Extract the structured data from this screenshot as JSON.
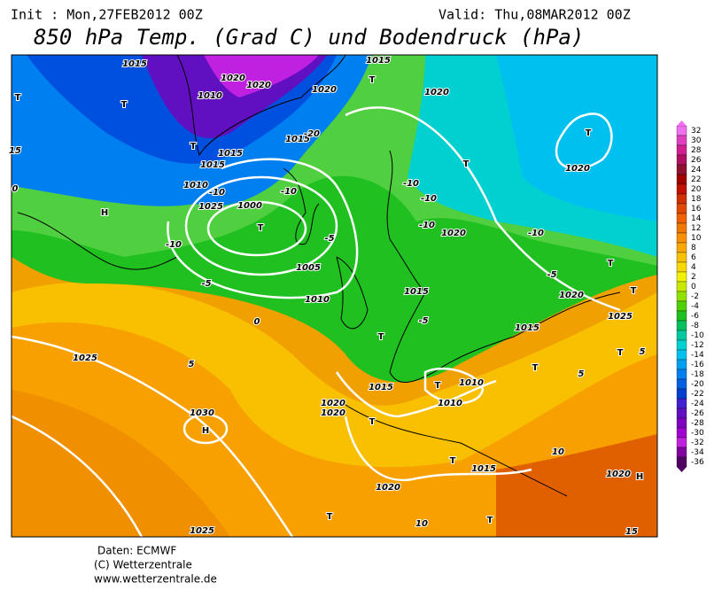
{
  "header": {
    "init": "Init : Mon,27FEB2012 00Z",
    "valid": "Valid: Thu,08MAR2012 00Z",
    "title": "850 hPa Temp. (Grad C) und Bodendruck (hPa)"
  },
  "footer": [
    "Daten: ECMWF",
    "(C) Wetterzentrale",
    "www.wetterzentrale.de"
  ],
  "colorbar": {
    "values": [
      32,
      30,
      28,
      26,
      24,
      22,
      20,
      18,
      16,
      14,
      12,
      10,
      8,
      6,
      4,
      2,
      0,
      -2,
      -4,
      -6,
      -8,
      -10,
      -12,
      -14,
      -16,
      -18,
      -20,
      -22,
      -24,
      -26,
      -28,
      -30,
      -32,
      -34,
      -36
    ],
    "colors": [
      "#f070f0",
      "#e040c0",
      "#d02090",
      "#b01060",
      "#901030",
      "#a00000",
      "#c01000",
      "#d03000",
      "#e04800",
      "#f06000",
      "#f07800",
      "#f89000",
      "#f8a800",
      "#f8c000",
      "#f8d800",
      "#f0f000",
      "#c8e800",
      "#90e000",
      "#50d000",
      "#20c020",
      "#00c060",
      "#00c8a0",
      "#00d0d0",
      "#00c0f0",
      "#00a0f0",
      "#0080f0",
      "#0060e0",
      "#0040d0",
      "#4020d0",
      "#6010c0",
      "#8000c0",
      "#a000d0",
      "#c020e0",
      "#8000a0",
      "#500060"
    ]
  },
  "map_labels": [
    "T",
    "T",
    "T",
    "T",
    "1015",
    "1020",
    "1020",
    "1010",
    "1020",
    "1015",
    "-20",
    "1015",
    "1015",
    "1010",
    "-10",
    "-10",
    "1025",
    "1000",
    "T",
    "H",
    "-10",
    "-5",
    "1005",
    "-5",
    "1010",
    "0",
    "1025",
    "5",
    "1030",
    "H",
    "1020",
    "1020",
    "T",
    "1015",
    "T",
    "1010",
    "1010",
    "T",
    "1015",
    "1020",
    "1025",
    "10",
    "T",
    "T",
    "10",
    "1020",
    "H",
    "15",
    "T",
    "-10",
    "-10",
    "-10",
    "1020",
    "-10",
    "1020",
    "T",
    "1020",
    "T",
    "T",
    "-5",
    "1020",
    "1015",
    "-5",
    "T",
    "1015",
    "5",
    "T",
    "1025",
    "T",
    "5",
    "15",
    "0",
    "1015"
  ]
}
